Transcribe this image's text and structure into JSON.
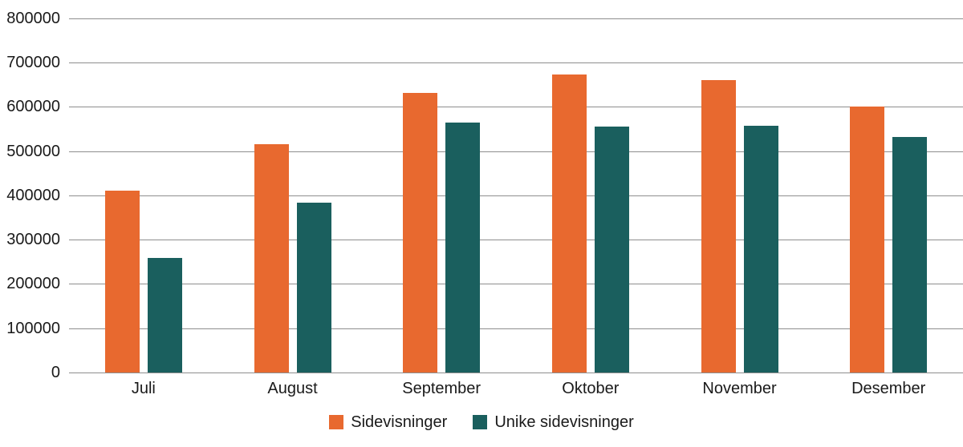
{
  "chart_data": {
    "type": "bar",
    "title": "",
    "xlabel": "",
    "ylabel": "",
    "categories": [
      "Juli",
      "August",
      "September",
      "Oktober",
      "November",
      "Desember"
    ],
    "series": [
      {
        "name": "Sidevisninger",
        "color": "#E8692F",
        "values": [
          411000,
          515000,
          631000,
          674000,
          660000,
          600000
        ]
      },
      {
        "name": "Unike sidevisninger",
        "color": "#1A5F5E",
        "values": [
          258000,
          383000,
          565000,
          555000,
          557000,
          533000
        ]
      }
    ],
    "ylim": [
      0,
      800000
    ],
    "ytick_step": 100000,
    "ytick_labels": [
      "0",
      "100000",
      "200000",
      "300000",
      "400000",
      "500000",
      "600000",
      "700000",
      "800000"
    ],
    "grid": true,
    "legend_position": "bottom"
  },
  "colors": {
    "background": "#FFFFFF",
    "grid": "#8E8E8E",
    "text": "#1A1A1A",
    "series_1": "#E8692F",
    "series_2": "#1A5F5E"
  }
}
